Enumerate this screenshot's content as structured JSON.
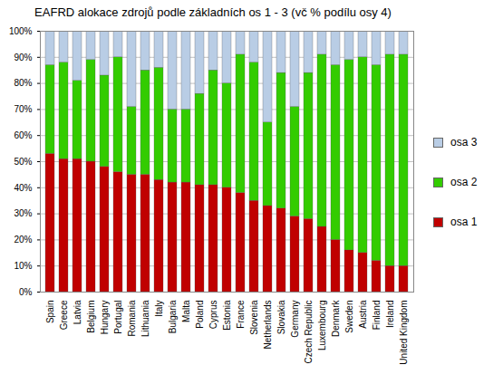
{
  "chart_data": {
    "type": "bar",
    "stacked": true,
    "grid": true,
    "legend": "right",
    "title": "EAFRD alokace zdrojů podle základních os 1 - 3 (vč % podílu osy 4)",
    "categories": [
      "Spain",
      "Greece",
      "Latvia",
      "Belgium",
      "Hungary",
      "Portugal",
      "Romania",
      "Lithuania",
      "Italy",
      "Bulgaria",
      "Malta",
      "Poland",
      "Cyprus",
      "Estonia",
      "France",
      "Slovenia",
      "Netherlands",
      "Slovakia",
      "Germany",
      "Czech Republic",
      "Luxembourg",
      "Denmark",
      "Sweden",
      "Austria",
      "Finland",
      "Ireland",
      "United Kingdom"
    ],
    "series": [
      {
        "name": "osa 1",
        "color": "#c00000",
        "values": [
          53,
          51,
          51,
          50,
          48,
          46,
          45,
          45,
          43,
          42,
          42,
          41,
          41,
          40,
          38,
          35,
          33,
          32,
          29,
          28,
          25,
          20,
          16,
          15,
          12,
          10,
          10
        ]
      },
      {
        "name": "osa 2",
        "color": "#33cc00",
        "values": [
          34,
          37,
          30,
          39,
          35,
          44,
          26,
          40,
          43,
          28,
          28,
          35,
          44,
          40,
          53,
          53,
          32,
          52,
          42,
          56,
          66,
          67,
          73,
          75,
          75,
          81,
          81
        ]
      },
      {
        "name": "osa 3",
        "color": "#b9cde5",
        "values": [
          13,
          12,
          19,
          11,
          17,
          10,
          29,
          15,
          14,
          30,
          30,
          24,
          15,
          20,
          9,
          12,
          35,
          16,
          29,
          16,
          9,
          13,
          11,
          10,
          13,
          9,
          9
        ]
      }
    ],
    "ylim": [
      0,
      100
    ],
    "yticks": [
      {
        "value": 0,
        "label": "0%"
      },
      {
        "value": 10,
        "label": "10%"
      },
      {
        "value": 20,
        "label": "20%"
      },
      {
        "value": 30,
        "label": "30%"
      },
      {
        "value": 40,
        "label": "40%"
      },
      {
        "value": 50,
        "label": "50%"
      },
      {
        "value": 60,
        "label": "60%"
      },
      {
        "value": 70,
        "label": "70%"
      },
      {
        "value": 80,
        "label": "80%"
      },
      {
        "value": 90,
        "label": "90%"
      },
      {
        "value": 100,
        "label": "100%"
      }
    ]
  }
}
